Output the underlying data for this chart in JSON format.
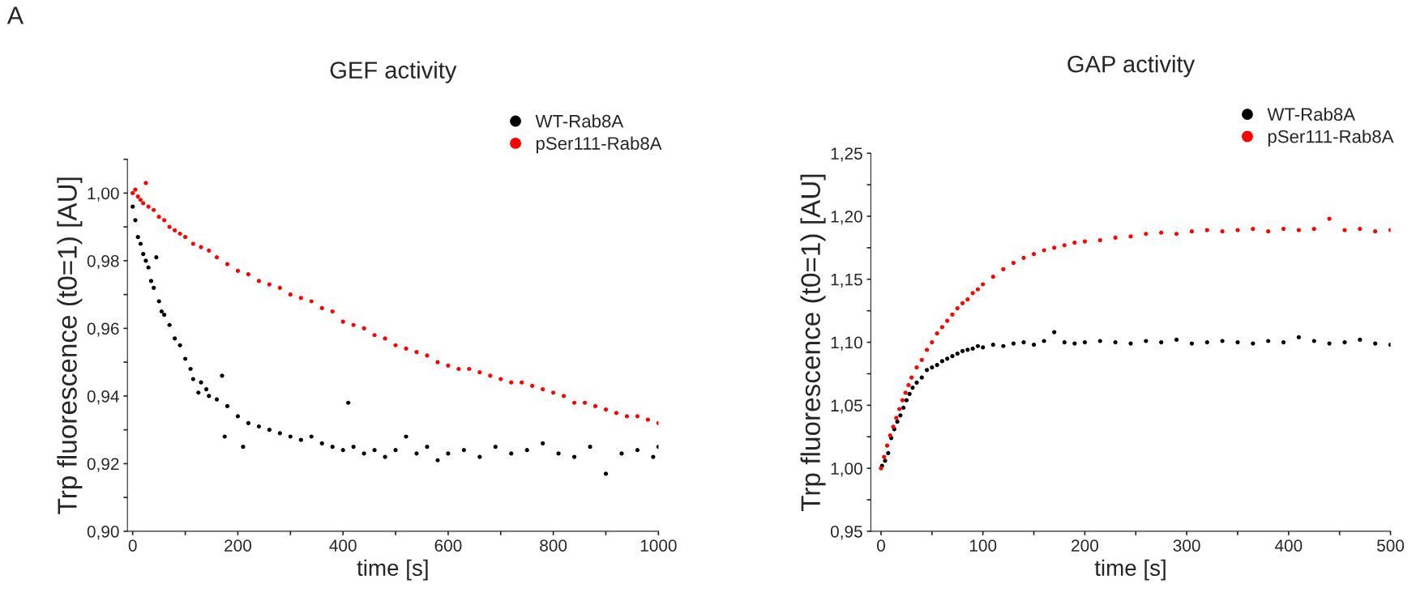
{
  "chart_data": [
    {
      "type": "scatter",
      "title": "GEF activity",
      "xlabel": "time [s]",
      "ylabel": "Trp fluorescence (t0=1) [AU]",
      "annotations": [
        "A"
      ],
      "xlim": [
        -10,
        1000
      ],
      "xticks": [
        0,
        {
          "value": 100,
          "label": null
        },
        200,
        {
          "value": 300,
          "label": null
        },
        400,
        {
          "value": 500,
          "label": null
        },
        600,
        {
          "value": 700,
          "label": null
        },
        800,
        {
          "value": 900,
          "label": null
        },
        1000
      ],
      "ylim": [
        0.9,
        1.01
      ],
      "yticks": [
        {
          "value": 0.9,
          "label": "0,90"
        },
        {
          "value": 0.91,
          "label": null
        },
        {
          "value": 0.92,
          "label": "0,92"
        },
        {
          "value": 0.93,
          "label": null
        },
        {
          "value": 0.94,
          "label": "0,94"
        },
        {
          "value": 0.95,
          "label": null
        },
        {
          "value": 0.96,
          "label": "0,96"
        },
        {
          "value": 0.97,
          "label": null
        },
        {
          "value": 0.98,
          "label": "0,98"
        },
        {
          "value": 0.99,
          "label": null
        },
        {
          "value": 1.0,
          "label": "1,00"
        },
        {
          "value": 1.01,
          "label": null
        }
      ],
      "legend": "top right",
      "marker": "circle",
      "grid": false,
      "series": [
        {
          "name": "WT-Rab8A",
          "color": "#000000",
          "x": [
            0,
            5,
            10,
            15,
            20,
            25,
            30,
            35,
            40,
            45,
            50,
            55,
            60,
            70,
            80,
            90,
            100,
            110,
            115,
            125,
            130,
            140,
            145,
            160,
            170,
            175,
            180,
            200,
            210,
            220,
            240,
            260,
            280,
            300,
            320,
            340,
            360,
            380,
            400,
            410,
            420,
            440,
            460,
            480,
            500,
            520,
            540,
            560,
            580,
            600,
            630,
            660,
            690,
            720,
            750,
            780,
            810,
            840,
            870,
            900,
            930,
            960,
            990,
            1000
          ],
          "values": [
            0.996,
            0.992,
            0.987,
            0.985,
            0.982,
            0.98,
            0.978,
            0.974,
            0.972,
            0.981,
            0.968,
            0.965,
            0.964,
            0.961,
            0.957,
            0.955,
            0.951,
            0.948,
            0.945,
            0.941,
            0.944,
            0.942,
            0.94,
            0.939,
            0.946,
            0.928,
            0.937,
            0.934,
            0.925,
            0.932,
            0.931,
            0.93,
            0.929,
            0.928,
            0.927,
            0.928,
            0.926,
            0.925,
            0.924,
            0.938,
            0.925,
            0.923,
            0.924,
            0.922,
            0.924,
            0.928,
            0.923,
            0.925,
            0.921,
            0.923,
            0.924,
            0.922,
            0.925,
            0.923,
            0.924,
            0.926,
            0.923,
            0.922,
            0.925,
            0.917,
            0.923,
            0.924,
            0.922,
            0.925
          ]
        },
        {
          "name": "pSer111-Rab8A",
          "color": "#ff0000",
          "x": [
            0,
            5,
            10,
            15,
            20,
            25,
            30,
            40,
            50,
            60,
            70,
            80,
            90,
            100,
            115,
            130,
            145,
            160,
            180,
            200,
            220,
            240,
            260,
            280,
            300,
            320,
            340,
            360,
            380,
            400,
            420,
            440,
            460,
            480,
            500,
            520,
            540,
            560,
            580,
            600,
            620,
            640,
            660,
            680,
            700,
            720,
            740,
            760,
            780,
            800,
            820,
            840,
            860,
            880,
            900,
            920,
            940,
            960,
            980,
            1000
          ],
          "values": [
            1.0,
            1.001,
            0.999,
            0.998,
            0.997,
            1.003,
            0.996,
            0.995,
            0.993,
            0.992,
            0.99,
            0.989,
            0.988,
            0.987,
            0.985,
            0.984,
            0.983,
            0.981,
            0.979,
            0.977,
            0.976,
            0.974,
            0.973,
            0.972,
            0.97,
            0.969,
            0.968,
            0.966,
            0.965,
            0.962,
            0.961,
            0.96,
            0.958,
            0.957,
            0.955,
            0.954,
            0.953,
            0.952,
            0.95,
            0.949,
            0.948,
            0.948,
            0.947,
            0.946,
            0.945,
            0.944,
            0.944,
            0.943,
            0.942,
            0.941,
            0.94,
            0.938,
            0.938,
            0.937,
            0.936,
            0.935,
            0.934,
            0.934,
            0.933,
            0.932
          ]
        }
      ]
    },
    {
      "type": "scatter",
      "title": "GAP activity",
      "xlabel": "time [s]",
      "ylabel": "Trp fluorescence (t0=1) [AU]",
      "xlim": [
        -10,
        500
      ],
      "xticks": [
        0,
        {
          "value": 50,
          "label": null
        },
        100,
        {
          "value": 150,
          "label": null
        },
        200,
        {
          "value": 250,
          "label": null
        },
        300,
        {
          "value": 350,
          "label": null
        },
        400,
        {
          "value": 450,
          "label": null
        },
        500
      ],
      "ylim": [
        0.95,
        1.25
      ],
      "yticks": [
        {
          "value": 0.95,
          "label": "0,95"
        },
        {
          "value": 0.975,
          "label": null
        },
        {
          "value": 1.0,
          "label": "1,00"
        },
        {
          "value": 1.025,
          "label": null
        },
        {
          "value": 1.05,
          "label": "1,05"
        },
        {
          "value": 1.075,
          "label": null
        },
        {
          "value": 1.1,
          "label": "1,10"
        },
        {
          "value": 1.125,
          "label": null
        },
        {
          "value": 1.15,
          "label": "1,15"
        },
        {
          "value": 1.175,
          "label": null
        },
        {
          "value": 1.2,
          "label": "1,20"
        },
        {
          "value": 1.225,
          "label": null
        },
        {
          "value": 1.25,
          "label": "1,25"
        }
      ],
      "legend": "top right",
      "marker": "circle",
      "grid": false,
      "series": [
        {
          "name": "WT-Rab8A",
          "color": "#000000",
          "x": [
            1,
            4,
            7,
            10,
            13,
            16,
            19,
            22,
            25,
            28,
            31,
            35,
            40,
            45,
            50,
            55,
            60,
            65,
            70,
            75,
            80,
            85,
            90,
            95,
            100,
            110,
            120,
            130,
            140,
            150,
            160,
            170,
            180,
            190,
            200,
            215,
            230,
            245,
            260,
            275,
            290,
            305,
            320,
            335,
            350,
            365,
            380,
            395,
            410,
            425,
            440,
            455,
            470,
            485,
            500
          ],
          "values": [
            1.002,
            1.006,
            1.012,
            1.024,
            1.031,
            1.037,
            1.042,
            1.048,
            1.054,
            1.059,
            1.064,
            1.068,
            1.072,
            1.078,
            1.08,
            1.082,
            1.085,
            1.087,
            1.089,
            1.091,
            1.093,
            1.094,
            1.095,
            1.097,
            1.096,
            1.098,
            1.097,
            1.099,
            1.1,
            1.098,
            1.101,
            1.108,
            1.1,
            1.099,
            1.1,
            1.101,
            1.1,
            1.099,
            1.101,
            1.1,
            1.102,
            1.099,
            1.1,
            1.101,
            1.1,
            1.099,
            1.101,
            1.1,
            1.104,
            1.101,
            1.099,
            1.1,
            1.102,
            1.099,
            1.098
          ]
        },
        {
          "name": "pSer111-Rab8A",
          "color": "#ff0000",
          "x": [
            0,
            3,
            6,
            9,
            12,
            15,
            18,
            21,
            24,
            27,
            30,
            35,
            40,
            45,
            50,
            55,
            60,
            65,
            70,
            75,
            80,
            85,
            90,
            95,
            100,
            110,
            120,
            130,
            140,
            150,
            160,
            170,
            180,
            190,
            200,
            215,
            230,
            245,
            260,
            275,
            290,
            305,
            320,
            335,
            350,
            365,
            380,
            395,
            410,
            425,
            440,
            455,
            470,
            485,
            500
          ],
          "values": [
            1.0,
            1.009,
            1.018,
            1.026,
            1.033,
            1.04,
            1.047,
            1.054,
            1.06,
            1.066,
            1.072,
            1.08,
            1.086,
            1.094,
            1.1,
            1.107,
            1.112,
            1.117,
            1.122,
            1.127,
            1.131,
            1.134,
            1.139,
            1.142,
            1.146,
            1.152,
            1.158,
            1.163,
            1.167,
            1.17,
            1.173,
            1.175,
            1.177,
            1.179,
            1.18,
            1.181,
            1.183,
            1.184,
            1.186,
            1.187,
            1.186,
            1.188,
            1.189,
            1.188,
            1.189,
            1.19,
            1.188,
            1.19,
            1.189,
            1.19,
            1.198,
            1.189,
            1.19,
            1.188,
            1.189
          ]
        }
      ]
    }
  ]
}
